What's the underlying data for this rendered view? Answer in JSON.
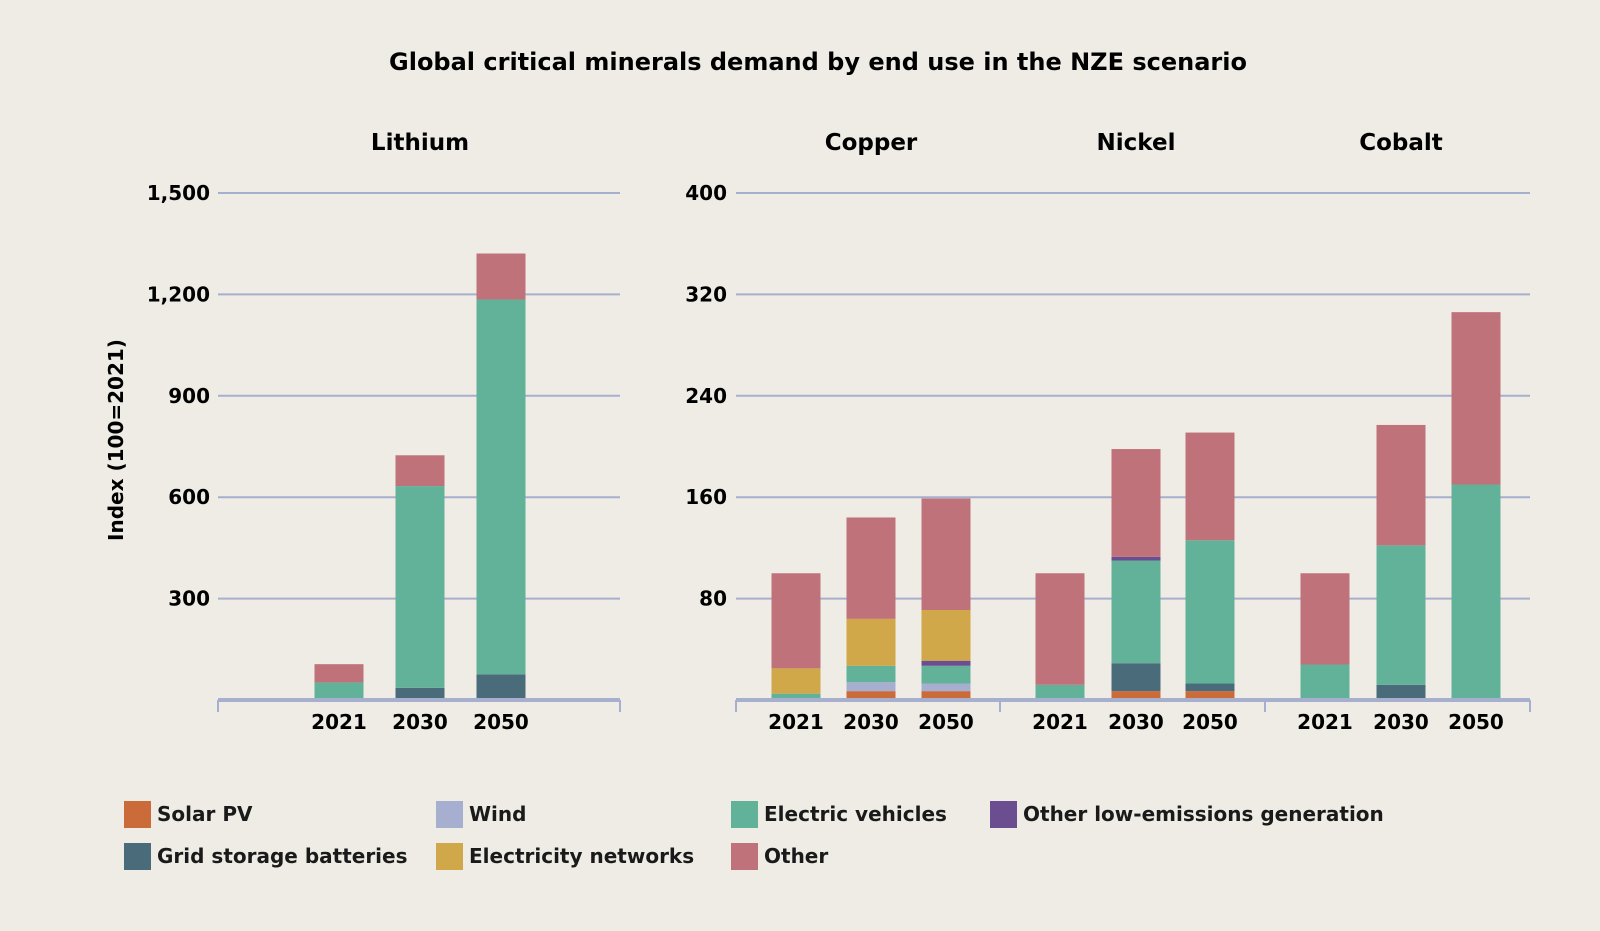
{
  "chart_data": {
    "type": "bar",
    "stacked": true,
    "title": "Global critical minerals demand by end use in the NZE scenario",
    "ylabel": "Index (100=2021)",
    "categories": [
      "2021",
      "2030",
      "2050"
    ],
    "legend": {
      "placement": "bottom",
      "entries": [
        {
          "key": "solar_pv",
          "label": "Solar PV",
          "color": "#cc6b3a"
        },
        {
          "key": "wind",
          "label": "Wind",
          "color": "#a7afd0"
        },
        {
          "key": "ev",
          "label": "Electric vehicles",
          "color": "#62b29a"
        },
        {
          "key": "other_low",
          "label": "Other low-emissions generation",
          "color": "#6a4e90"
        },
        {
          "key": "grid",
          "label": "Grid storage batteries",
          "color": "#4a6c7a"
        },
        {
          "key": "networks",
          "label": "Electricity networks",
          "color": "#d0a849"
        },
        {
          "key": "other",
          "label": "Other",
          "color": "#c0727b"
        }
      ]
    },
    "stack_order": [
      "solar_pv",
      "wind",
      "grid",
      "ev",
      "other_low",
      "networks",
      "other"
    ],
    "panels": [
      {
        "name": "Lithium",
        "ylim": [
          0,
          1500
        ],
        "yticks": [
          "300",
          "600",
          "900",
          "1,200",
          "1,500"
        ],
        "ytick_values": [
          300,
          600,
          900,
          1200,
          1500
        ],
        "grid": true,
        "series": {
          "solar_pv": [
            0,
            0,
            0
          ],
          "wind": [
            0,
            0,
            0
          ],
          "grid": [
            0,
            36,
            76
          ],
          "ev": [
            52,
            597,
            1109
          ],
          "other_low": [
            0,
            0,
            0
          ],
          "networks": [
            0,
            0,
            0
          ],
          "other": [
            54,
            91,
            136
          ]
        }
      },
      {
        "name": "Copper",
        "ylim": [
          0,
          400
        ],
        "yticks": [
          "80",
          "160",
          "240",
          "320",
          "400"
        ],
        "ytick_values": [
          80,
          160,
          240,
          320,
          400
        ],
        "grid": true,
        "series": {
          "solar_pv": [
            0,
            7,
            7
          ],
          "wind": [
            0,
            7,
            6
          ],
          "grid": [
            0,
            0,
            0
          ],
          "ev": [
            5,
            13,
            14
          ],
          "other_low": [
            0,
            0,
            4
          ],
          "networks": [
            20,
            37,
            40
          ],
          "other": [
            75,
            80,
            88
          ]
        }
      },
      {
        "name": "Nickel",
        "ylim": [
          0,
          400
        ],
        "grid": true,
        "series": {
          "solar_pv": [
            0,
            7,
            7
          ],
          "wind": [
            0,
            0,
            0
          ],
          "grid": [
            0,
            22,
            6
          ],
          "ev": [
            12,
            81,
            113
          ],
          "other_low": [
            0,
            3,
            0
          ],
          "networks": [
            0,
            0,
            0
          ],
          "other": [
            88,
            85,
            85
          ]
        }
      },
      {
        "name": "Cobalt",
        "ylim": [
          0,
          400
        ],
        "grid": true,
        "series": {
          "solar_pv": [
            0,
            0,
            0
          ],
          "wind": [
            0,
            0,
            0
          ],
          "grid": [
            0,
            12,
            0
          ],
          "ev": [
            28,
            110,
            170
          ],
          "other_low": [
            0,
            0,
            0
          ],
          "networks": [
            0,
            0,
            0
          ],
          "other": [
            72,
            95,
            136
          ]
        }
      }
    ]
  }
}
